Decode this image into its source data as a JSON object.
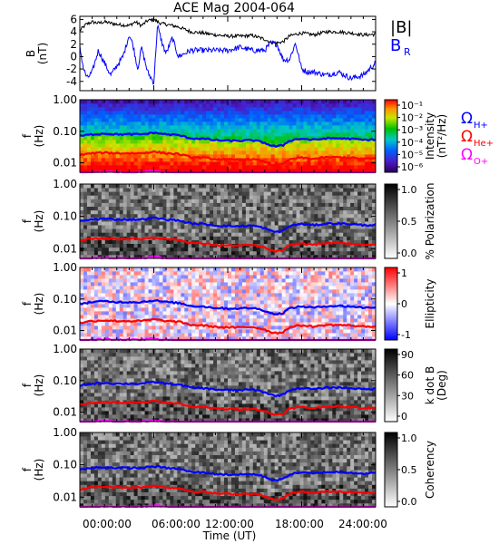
{
  "title": "ACE Mag 2004-064",
  "xlabel": "Time (UT)",
  "xticks": [
    "00:00:00",
    "06:00:00",
    "12:00:00",
    "18:00:00",
    "24:00:00"
  ],
  "legend_top": [
    "|B|",
    "B",
    "R"
  ],
  "legend_freq": [
    {
      "main": "Ω",
      "sub": "H+",
      "color": "#0000ff"
    },
    {
      "main": "Ω",
      "sub": "He+",
      "color": "#ff0000"
    },
    {
      "main": "Ω",
      "sub": "O+",
      "color": "#ff00ff"
    }
  ],
  "colors": {
    "B_total": "#000000",
    "B_R": "#0000ff",
    "H": "#0000ff",
    "He": "#ff0000",
    "O": "#ff00ff"
  },
  "chart_data": [
    {
      "type": "line",
      "ylabel": [
        "B",
        "(nT)"
      ],
      "ylim": [
        -5.5,
        6.5
      ],
      "yticks": [
        "6",
        "4",
        "2",
        "0",
        "-2",
        "-4"
      ],
      "x_unit": "hours UT",
      "xlim": [
        0,
        24
      ],
      "series": [
        {
          "name": "|B|",
          "color": "#000000",
          "x": [
            0,
            0.5,
            1,
            1.5,
            2,
            3,
            4,
            4.5,
            5,
            5.5,
            6,
            6.5,
            7,
            8,
            9,
            10,
            11,
            12,
            13,
            14,
            15,
            15.5,
            16,
            16.5,
            17,
            17.5,
            18,
            19,
            20,
            21,
            22,
            23,
            24
          ],
          "values": [
            4.2,
            5.2,
            5.6,
            5.4,
            5.6,
            5.2,
            5.0,
            5.6,
            5.0,
            5.8,
            6.0,
            5.4,
            5.2,
            4.8,
            4.0,
            3.8,
            3.5,
            3.3,
            3.3,
            3.4,
            2.8,
            2.3,
            2.2,
            2.4,
            3.3,
            3.6,
            3.8,
            3.5,
            4.0,
            4.0,
            3.8,
            3.5,
            3.6
          ]
        },
        {
          "name": "B",
          "color": "#0000ff",
          "x": [
            0,
            0.3,
            0.6,
            1,
            1.5,
            2,
            2.5,
            3,
            3.5,
            4,
            4.3,
            4.7,
            5,
            5.5,
            6,
            6.3,
            6.7,
            7,
            7.5,
            8,
            9,
            10,
            11,
            12,
            13,
            14,
            15,
            15.5,
            16,
            16.5,
            17,
            17.5,
            18,
            18.5,
            19,
            20,
            21,
            22,
            23,
            24
          ],
          "values": [
            1.5,
            -2.0,
            -3.5,
            -2.5,
            1.0,
            -1.0,
            -3.0,
            -1.5,
            0.0,
            3.5,
            2.0,
            -2.0,
            1.5,
            -2.5,
            -4.2,
            5.0,
            2.0,
            0.5,
            3.0,
            0.0,
            1.0,
            1.0,
            1.0,
            1.0,
            1.5,
            1.0,
            1.0,
            2.2,
            2.0,
            -0.5,
            -0.5,
            2.2,
            -2.0,
            -2.5,
            -2.5,
            -3.0,
            -2.5,
            -3.5,
            -3.0,
            -1.0
          ]
        }
      ]
    },
    {
      "type": "heatmap",
      "ylabel": [
        "f",
        "(Hz)"
      ],
      "ylim": [
        0.005,
        1.0
      ],
      "yscale": "log",
      "yticks": [
        "1.00",
        "0.10",
        "0.01"
      ],
      "colorbar": {
        "label": [
          "Intensity",
          "(nT²/Hz)"
        ],
        "ticks": [
          "10⁻¹",
          "10⁻²",
          "10⁻³",
          "10⁻⁴",
          "10⁻⁵",
          "10⁻⁶"
        ],
        "range": [
          -6.5,
          -0.5
        ],
        "scale": "rainbow"
      },
      "overlays": [
        "H+",
        "He+",
        "O+"
      ]
    },
    {
      "type": "heatmap",
      "ylabel": [
        "f",
        "(Hz)"
      ],
      "ylim": [
        0.005,
        1.0
      ],
      "yscale": "log",
      "yticks": [
        "1.00",
        "0.10",
        "0.01"
      ],
      "colorbar": {
        "label": [
          "% Polarization"
        ],
        "ticks": [
          "1.0",
          "0.5",
          "0.0"
        ],
        "range": [
          0,
          1
        ],
        "scale": "gray"
      },
      "overlays": [
        "H+",
        "He+",
        "O+"
      ]
    },
    {
      "type": "heatmap",
      "ylabel": [
        "f",
        "(Hz)"
      ],
      "ylim": [
        0.005,
        1.0
      ],
      "yscale": "log",
      "yticks": [
        "1.00",
        "0.10",
        "0.01"
      ],
      "colorbar": {
        "label": [
          "Ellipticity"
        ],
        "ticks": [
          "1",
          "0",
          "-1"
        ],
        "range": [
          -1,
          1
        ],
        "scale": "bwr"
      },
      "overlays": [
        "H+",
        "He+",
        "O+"
      ]
    },
    {
      "type": "heatmap",
      "ylabel": [
        "f",
        "(Hz)"
      ],
      "ylim": [
        0.005,
        1.0
      ],
      "yscale": "log",
      "yticks": [
        "1.00",
        "0.10",
        "0.01"
      ],
      "colorbar": {
        "label": [
          "k dot B",
          "(Deg)"
        ],
        "ticks": [
          "90",
          "60",
          "30",
          "0"
        ],
        "range": [
          0,
          90
        ],
        "scale": "gray"
      },
      "overlays": [
        "H+",
        "He+",
        "O+"
      ]
    },
    {
      "type": "heatmap",
      "ylabel": [
        "f",
        "(Hz)"
      ],
      "ylim": [
        0.005,
        1.0
      ],
      "yscale": "log",
      "yticks": [
        "1.00",
        "0.10",
        "0.01"
      ],
      "colorbar": {
        "label": [
          "Coherency"
        ],
        "ticks": [
          "1.0",
          "0.5",
          "0.0"
        ],
        "range": [
          0,
          1
        ],
        "scale": "gray"
      },
      "overlays": [
        "H+",
        "He+",
        "O+"
      ]
    }
  ],
  "gyrofrequency_lines": {
    "x_unit": "hours UT",
    "x": [
      0,
      1,
      2,
      3,
      4,
      5,
      6,
      7,
      8,
      9,
      10,
      11,
      12,
      13,
      14,
      15,
      15.5,
      16,
      16.5,
      17,
      17.5,
      18,
      19,
      20,
      21,
      22,
      23,
      24
    ],
    "H+": [
      0.07,
      0.08,
      0.085,
      0.08,
      0.08,
      0.08,
      0.09,
      0.08,
      0.075,
      0.06,
      0.058,
      0.052,
      0.05,
      0.05,
      0.052,
      0.043,
      0.035,
      0.033,
      0.036,
      0.05,
      0.055,
      0.058,
      0.053,
      0.06,
      0.06,
      0.058,
      0.053,
      0.055
    ],
    "He+": [
      0.0175,
      0.02,
      0.021,
      0.02,
      0.02,
      0.02,
      0.0225,
      0.02,
      0.019,
      0.015,
      0.0145,
      0.013,
      0.0125,
      0.0125,
      0.013,
      0.0108,
      0.0088,
      0.0083,
      0.009,
      0.0125,
      0.0138,
      0.0145,
      0.0133,
      0.015,
      0.015,
      0.0145,
      0.0133,
      0.0138
    ],
    "O+": [
      0.0044,
      0.005,
      0.0053,
      0.005,
      0.005,
      0.005,
      0.0056,
      0.005,
      0.0047,
      0.0038,
      0.0036,
      0.0033,
      0.0031,
      0.0031,
      0.0033,
      0.0027,
      0.0022,
      0.0021,
      0.0023,
      0.0031,
      0.0034,
      0.0036,
      0.0033,
      0.0038,
      0.0038,
      0.0036,
      0.0033,
      0.0034
    ]
  }
}
